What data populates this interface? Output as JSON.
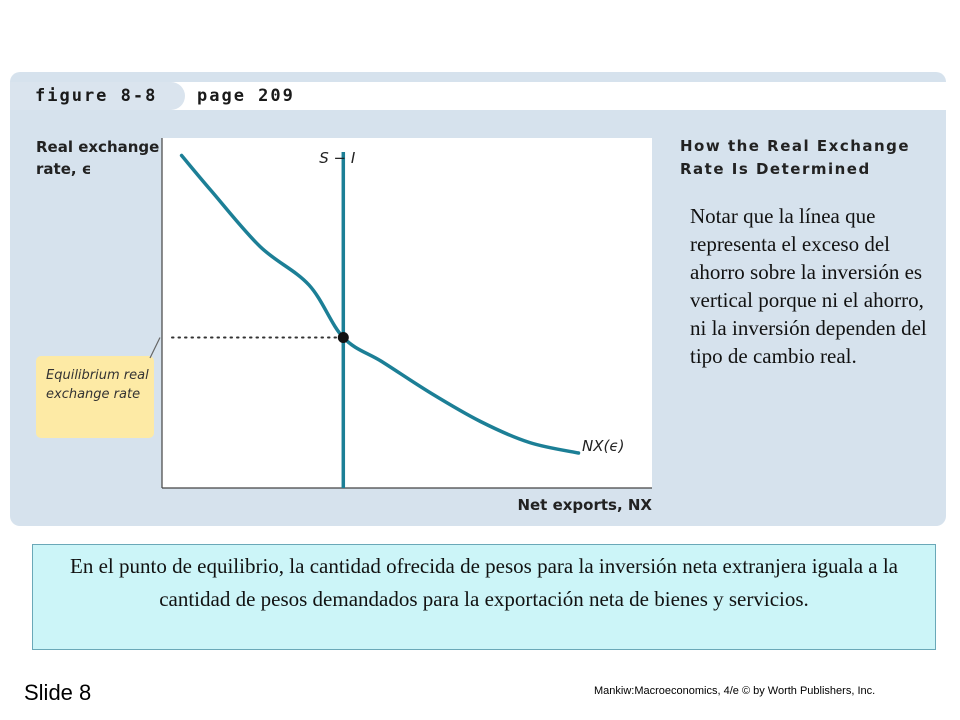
{
  "header": {
    "figure_label": "figure 8-8",
    "page_label": "page 209"
  },
  "chart_title": {
    "line1": "How the Real Exchange",
    "line2": "Rate Is Determined"
  },
  "note": "Notar que la línea que representa el exceso del ahorro sobre la inversión es vertical porque ni el ahorro, ni la inversión dependen del tipo de cambio real.",
  "bottom_box": "En el punto de equilibrio, la cantidad ofrecida de pesos para la inversión neta extranjera iguala a la cantidad de pesos demandados para la exportación neta de bienes y servicios.",
  "slide_label": "Slide 8",
  "credit": "Mankiw:Macroeconomics, 4/e © by Worth Publishers, Inc.",
  "colors": {
    "panel": "#d6e2ed",
    "curve": "#1c7f96",
    "callout": "#fdeaa5",
    "bottom_box": "#ccf5f8"
  },
  "chart_data": {
    "type": "line",
    "title": "How the Real Exchange Rate Is Determined",
    "ylabel_line1": "Real exchange",
    "ylabel_line2": "rate, ϵ",
    "xlabel": "Net exports, NX",
    "xlim": [
      0,
      10
    ],
    "ylim": [
      0,
      10
    ],
    "series": [
      {
        "name": "NX(ϵ)",
        "x": [
          0.4,
          1.0,
          2.0,
          3.0,
          3.7,
          4.5,
          5.5,
          6.5,
          7.5,
          8.5
        ],
        "y": [
          9.5,
          8.5,
          6.9,
          5.8,
          4.3,
          3.6,
          2.7,
          1.9,
          1.3,
          1.0
        ]
      },
      {
        "name": "S − I",
        "x": [
          3.7,
          3.7
        ],
        "y": [
          0,
          9.6
        ]
      }
    ],
    "equilibrium": {
      "x": 3.7,
      "y": 4.3
    },
    "annotations": {
      "equilibrium_label": "Equilibrium real exchange rate",
      "supply_label": "S − I",
      "demand_label": "NX(ϵ)"
    },
    "grid": false
  }
}
